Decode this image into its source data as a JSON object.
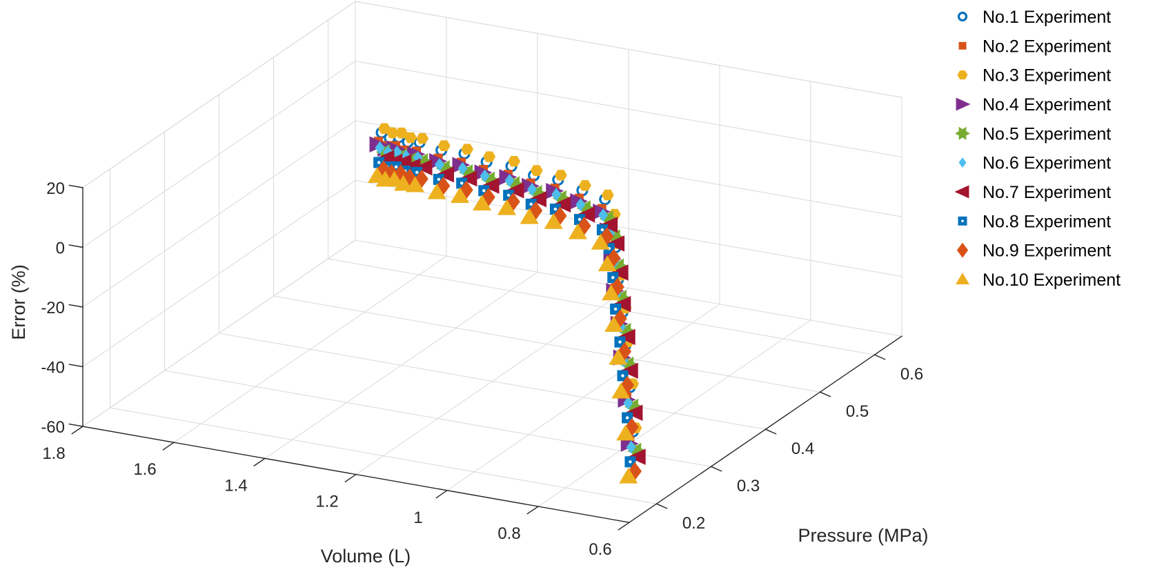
{
  "chart_data": {
    "type": "scatter",
    "subtype": "scatter3d",
    "title": "",
    "axes": {
      "x": {
        "label": "Volume (L)",
        "range": [
          0.6,
          1.8
        ],
        "ticks": [
          1.8,
          1.6,
          1.4,
          1.2,
          1.0,
          0.8,
          0.6
        ],
        "tick_labels": [
          "1.8",
          "1.6",
          "1.4",
          "1.2",
          "1",
          "0.8",
          "0.6"
        ]
      },
      "y": {
        "label": "Pressure (MPa)",
        "range": [
          0.15,
          0.65
        ],
        "ticks": [
          0.2,
          0.3,
          0.4,
          0.5,
          0.6
        ],
        "tick_labels": [
          "0.2",
          "0.3",
          "0.4",
          "0.5",
          "0.6"
        ]
      },
      "z": {
        "label": "Error (%)",
        "range": [
          -60,
          20
        ],
        "ticks": [
          20,
          0,
          -20,
          -40,
          -60
        ],
        "tick_labels": [
          "20",
          "0",
          "-20",
          "-40",
          "-60"
        ]
      }
    },
    "grid": true,
    "legend_position": "right-outside",
    "base_points": {
      "volume": [
        1.431,
        1.412,
        1.392,
        1.371,
        1.344,
        1.295,
        1.242,
        1.191,
        1.133,
        1.08,
        1.022,
        0.964,
        0.907,
        0.88,
        0.855,
        0.83,
        0.8,
        0.77,
        0.73,
        0.69
      ],
      "pressure": [
        0.39,
        0.389,
        0.389,
        0.388,
        0.387,
        0.386,
        0.384,
        0.382,
        0.379,
        0.376,
        0.372,
        0.368,
        0.362,
        0.352,
        0.338,
        0.322,
        0.305,
        0.285,
        0.26,
        0.232
      ]
    },
    "series": [
      {
        "name": "No.1 Experiment",
        "marker": "circle-open",
        "color": "#0072BD",
        "v_offset": 0.0,
        "error": [
          18.4,
          17.2,
          18.0,
          17.1,
          17.8,
          16.6,
          17.2,
          16.0,
          16.5,
          15.2,
          15.8,
          14.3,
          13.6,
          9.1,
          1.9,
          -6.1,
          -14.2,
          -22.1,
          -31.9,
          -42.2
        ]
      },
      {
        "name": "No.2 Experiment",
        "marker": "square",
        "color": "#D95319",
        "v_offset": 0.007,
        "error": [
          15.3,
          14.5,
          15.0,
          14.2,
          14.7,
          13.8,
          14.1,
          13.3,
          13.6,
          12.5,
          12.8,
          11.5,
          10.3,
          6.0,
          -1.3,
          -9.2,
          -17.3,
          -25.3,
          -35.2,
          -45.4
        ]
      },
      {
        "name": "No.3 Experiment",
        "marker": "hexagon",
        "color": "#EDB120",
        "v_offset": -0.006,
        "error": [
          19.9,
          19.1,
          19.6,
          18.7,
          19.3,
          18.3,
          18.8,
          17.9,
          18.3,
          17.0,
          17.5,
          16.1,
          15.2,
          10.7,
          3.3,
          -4.6,
          -12.7,
          -20.7,
          -30.6,
          -40.8
        ]
      },
      {
        "name": "No.4 Experiment",
        "marker": "triangle-right",
        "color": "#7E2F8E",
        "v_offset": 0.009,
        "error": [
          14.2,
          13.4,
          13.9,
          13.2,
          13.6,
          12.7,
          13.1,
          12.2,
          12.6,
          11.4,
          11.8,
          10.4,
          9.2,
          4.9,
          -2.4,
          -10.3,
          -18.4,
          -26.4,
          -36.3,
          -46.5
        ]
      },
      {
        "name": "No.5 Experiment",
        "marker": "hexagram",
        "color": "#77AC30",
        "v_offset": -0.008,
        "error": [
          12.1,
          11.5,
          11.9,
          11.2,
          11.7,
          10.8,
          11.1,
          10.3,
          10.7,
          9.5,
          9.8,
          8.5,
          7.3,
          3.0,
          -4.3,
          -12.2,
          -20.3,
          -28.3,
          -38.2,
          -48.4
        ]
      },
      {
        "name": "No.6 Experiment",
        "marker": "diamond",
        "color": "#4DBEEE",
        "v_offset": 0.004,
        "error": [
          13.2,
          12.4,
          12.9,
          12.2,
          12.6,
          11.7,
          12.1,
          11.2,
          11.6,
          10.4,
          10.8,
          9.4,
          8.2,
          3.9,
          -3.4,
          -11.3,
          -19.4,
          -27.4,
          -37.3,
          -47.5
        ]
      },
      {
        "name": "No.7 Experiment",
        "marker": "triangle-left",
        "color": "#A2142F",
        "v_offset": -0.01,
        "error": [
          10.1,
          9.5,
          9.9,
          9.2,
          9.7,
          8.8,
          9.1,
          8.3,
          8.7,
          7.5,
          7.8,
          6.5,
          5.3,
          1.0,
          -6.3,
          -14.2,
          -22.3,
          -30.3,
          -40.2,
          -50.4
        ]
      },
      {
        "name": "No.8 Experiment",
        "marker": "square-dot",
        "color": "#0072BD",
        "v_offset": 0.006,
        "error": [
          8.2,
          7.4,
          7.9,
          7.2,
          7.6,
          6.7,
          7.1,
          6.2,
          6.6,
          5.4,
          5.8,
          4.4,
          3.2,
          -1.1,
          -8.4,
          -16.3,
          -24.4,
          -32.4,
          -42.3,
          -52.5
        ]
      },
      {
        "name": "No.9 Experiment",
        "marker": "diamond-large",
        "color": "#D95319",
        "v_offset": -0.004,
        "error": [
          6.1,
          5.5,
          5.9,
          5.2,
          5.7,
          4.8,
          5.1,
          4.3,
          4.7,
          3.5,
          3.8,
          2.5,
          1.3,
          -4.0,
          -11.3,
          -19.2,
          -27.3,
          -35.3,
          -45.2,
          -55.4
        ]
      },
      {
        "name": "No.10 Experiment",
        "marker": "triangle-up",
        "color": "#EDB120",
        "v_offset": 0.01,
        "error": [
          3.5,
          2.9,
          3.4,
          2.7,
          3.1,
          2.2,
          2.6,
          1.7,
          2.1,
          0.9,
          1.3,
          -0.1,
          -1.3,
          -6.6,
          -13.9,
          -21.8,
          -29.9,
          -37.9,
          -47.8,
          -57.6
        ]
      }
    ]
  },
  "colors": {
    "background": "#ffffff",
    "axis": "#262626",
    "grid": "#d9d9d9",
    "tick_text": "#262626",
    "legend_text": "#000000"
  }
}
